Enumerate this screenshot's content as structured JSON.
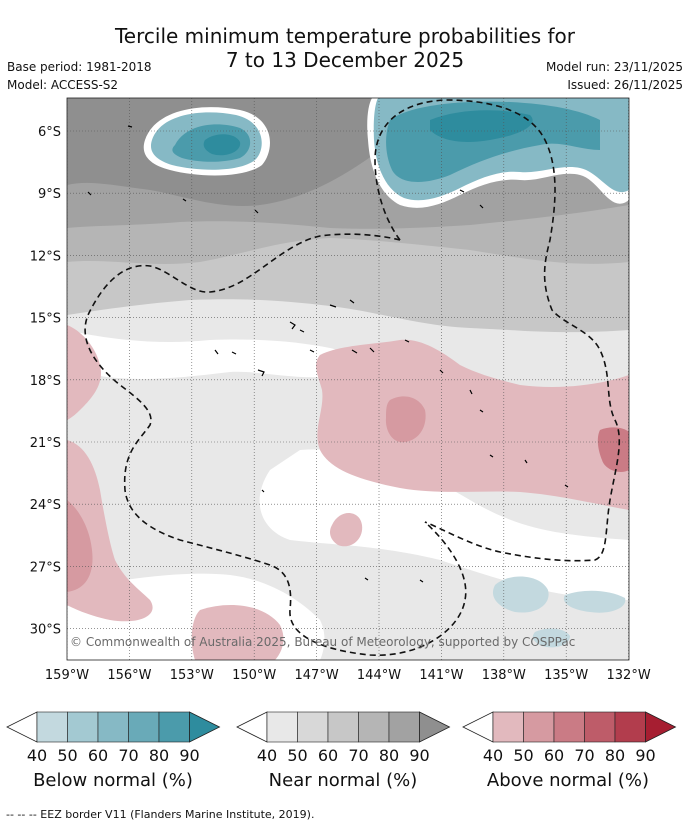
{
  "title_line1": "Tercile minimum temperature probabilities for",
  "title_line2": "7 to 13 December 2025",
  "base_period": "Base period: 1981-2018",
  "model": "Model: ACCESS-S2",
  "model_run": "Model run: 23/11/2025",
  "issued": "Issued: 26/11/2025",
  "copyright": "© Commonwealth of Australia 2025, Bureau of Meteorology, supported by COSPPac",
  "lat_labels": [
    "6°S",
    "9°S",
    "12°S",
    "15°S",
    "18°S",
    "21°S",
    "24°S",
    "27°S",
    "30°S"
  ],
  "lon_labels": [
    "159°W",
    "156°W",
    "153°W",
    "150°W",
    "147°W",
    "144°W",
    "141°W",
    "138°W",
    "135°W",
    "132°W"
  ],
  "colorbars": [
    {
      "title": "Below normal (%)",
      "ticks": [
        "40",
        "50",
        "60",
        "70",
        "80",
        "90"
      ],
      "colors": [
        "#c3d9df",
        "#a3c9d2",
        "#86b9c5",
        "#69aab8",
        "#4b9bab",
        "#2e8c9e"
      ]
    },
    {
      "title": "Near normal (%)",
      "ticks": [
        "40",
        "50",
        "60",
        "70",
        "80",
        "90"
      ],
      "colors": [
        "#e8e8e8",
        "#d8d8d8",
        "#c7c7c7",
        "#b5b5b5",
        "#a2a2a2",
        "#8f8f8f"
      ]
    },
    {
      "title": "Above normal (%)",
      "ticks": [
        "40",
        "50",
        "60",
        "70",
        "80",
        "90"
      ],
      "colors": [
        "#e2b9be",
        "#d69aa1",
        "#ca7b85",
        "#be5c69",
        "#b23d4d",
        "#a61e31"
      ]
    }
  ],
  "footer": "--  --  -- EEZ border V11 (Flanders Marine Institute, 2019)."
}
